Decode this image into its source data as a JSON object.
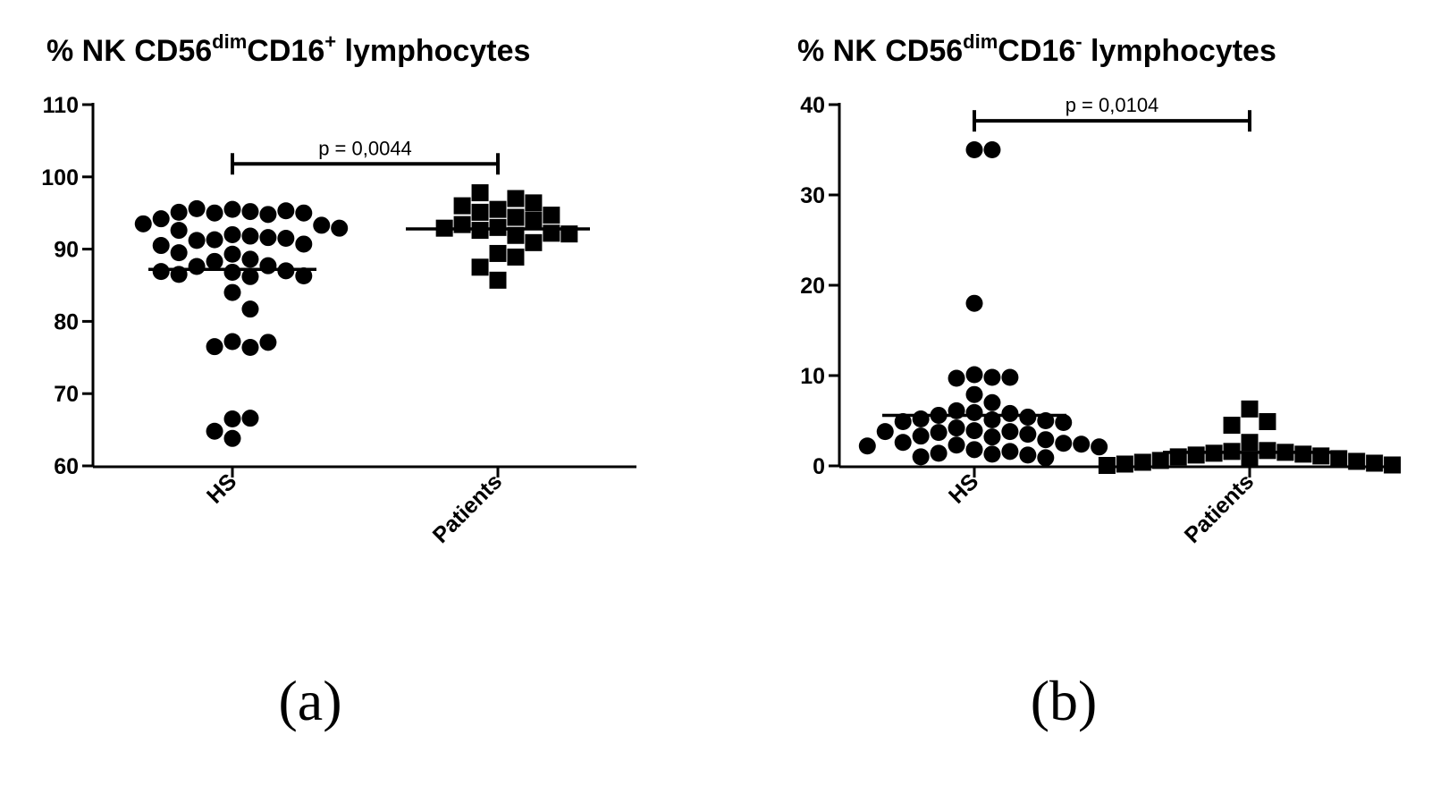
{
  "chart_data": [
    {
      "type": "scatter",
      "title": {
        "prefix": "% NK CD56",
        "sup1": "dim",
        "middle": "CD16",
        "sup2": "+",
        "suffix": " lymphocytes"
      },
      "panel_label": "(a)",
      "categories": [
        "HS",
        "Patients"
      ],
      "ylim": [
        60,
        110
      ],
      "yticks": [
        60,
        70,
        80,
        90,
        100,
        110
      ],
      "ytick_labels": [
        "60",
        "70",
        "80",
        "90",
        "100",
        "110"
      ],
      "means": [
        87.2,
        92.8
      ],
      "series": [
        {
          "name": "HS",
          "marker": "circle",
          "values": [
            95.5,
            95.2,
            95.0,
            94.8,
            95.6,
            95.3,
            95.1,
            95.0,
            94.2,
            93.3,
            93.5,
            92.0,
            91.8,
            91.3,
            91.6,
            91.2,
            91.5,
            92.9,
            92.6,
            90.7,
            90.5,
            89.3,
            89.5,
            88.6,
            88.3,
            87.7,
            87.6,
            87.0,
            86.8,
            86.5,
            86.3,
            86.2,
            86.9,
            84.0,
            81.7,
            77.2,
            76.4,
            76.5,
            77.1,
            66.5,
            66.6,
            64.8,
            63.8
          ]
        },
        {
          "name": "Patients",
          "marker": "square",
          "values": [
            95.5,
            97.0,
            97.8,
            96.4,
            96.0,
            95.1,
            94.7,
            94.4,
            94.0,
            93.4,
            93.0,
            92.9,
            92.6,
            92.2,
            92.1,
            91.9,
            90.9,
            89.4,
            88.9,
            87.5,
            85.7
          ]
        }
      ],
      "significance": {
        "text": "p = 0,0044",
        "bracket_y": 101.8
      }
    },
    {
      "type": "scatter",
      "title": {
        "prefix": "% NK CD56",
        "sup1": "dim",
        "middle": "CD16",
        "sup2": "-",
        "suffix": " lymphocytes"
      },
      "panel_label": "(b)",
      "categories": [
        "HS",
        "Patients"
      ],
      "ylim": [
        0,
        40
      ],
      "yticks": [
        0,
        10,
        20,
        30,
        40
      ],
      "ytick_labels": [
        "0",
        "10",
        "20",
        "30",
        "40"
      ],
      "means": [
        5.6,
        1.5
      ],
      "series": [
        {
          "name": "HS",
          "marker": "circle",
          "values": [
            35.0,
            35.0,
            18.0,
            10.1,
            9.8,
            9.7,
            9.8,
            7.9,
            7.0,
            6.1,
            5.9,
            5.8,
            5.6,
            5.4,
            5.2,
            5.1,
            5.0,
            4.9,
            4.8,
            4.2,
            3.9,
            3.8,
            3.8,
            3.7,
            3.5,
            3.3,
            3.2,
            2.9,
            2.6,
            2.5,
            2.4,
            2.3,
            2.2,
            2.1,
            1.8,
            1.6,
            1.4,
            1.3,
            1.2,
            1.0,
            0.9
          ]
        },
        {
          "name": "Patients",
          "marker": "square",
          "values": [
            6.3,
            4.9,
            4.5,
            2.6,
            1.7,
            1.6,
            1.5,
            1.4,
            1.3,
            1.2,
            1.1,
            1.0,
            0.8,
            0.7,
            0.6,
            0.5,
            0.4,
            0.3,
            0.2,
            0.1,
            0.05
          ]
        }
      ],
      "significance": {
        "text": "p = 0,0104",
        "bracket_y": 38.2
      }
    }
  ]
}
